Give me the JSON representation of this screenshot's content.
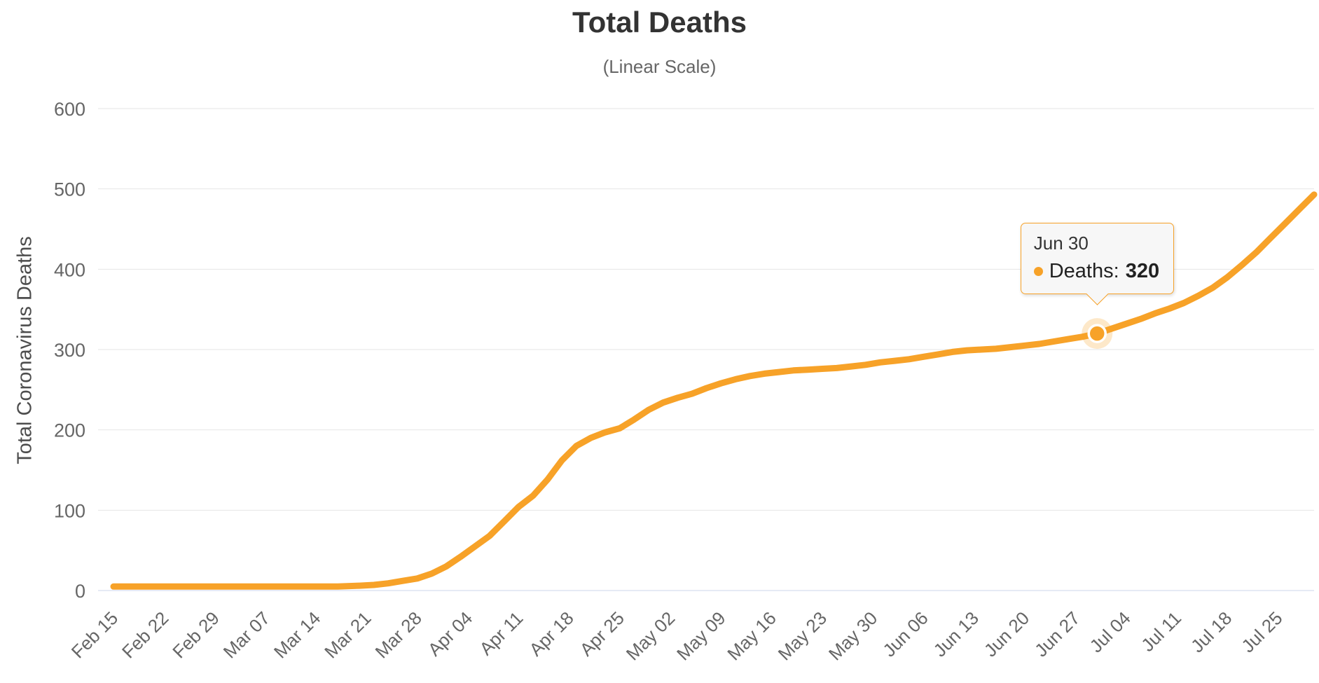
{
  "page": {
    "background": "#ffffff"
  },
  "chart_data": {
    "type": "line",
    "title": "Total Deaths",
    "subtitle": "(Linear Scale)",
    "xlabel": "",
    "ylabel": "Total Coronavirus Deaths",
    "ylim": [
      0,
      600
    ],
    "y_ticks": [
      0,
      100,
      200,
      300,
      400,
      500,
      600
    ],
    "x_tick_labels": [
      "Feb 15",
      "Feb 22",
      "Feb 29",
      "Mar 07",
      "Mar 14",
      "Mar 21",
      "Mar 28",
      "Apr 04",
      "Apr 11",
      "Apr 18",
      "Apr 25",
      "May 02",
      "May 09",
      "May 16",
      "May 23",
      "May 30",
      "Jun 06",
      "Jun 13",
      "Jun 20",
      "Jun 27",
      "Jul 04",
      "Jul 11",
      "Jul 18",
      "Jul 25"
    ],
    "grid": true,
    "legend": false,
    "line_color": "#F7A228",
    "grid_color": "#E6E6E6",
    "axis_line_color": "#CCD6EB",
    "series": [
      {
        "name": "Deaths",
        "color": "#F7A228",
        "points": [
          [
            "Feb 15",
            5
          ],
          [
            "Feb 18",
            5
          ],
          [
            "Feb 22",
            5
          ],
          [
            "Feb 25",
            5
          ],
          [
            "Feb 29",
            5
          ],
          [
            "Mar 03",
            5
          ],
          [
            "Mar 07",
            5
          ],
          [
            "Mar 10",
            5
          ],
          [
            "Mar 14",
            5
          ],
          [
            "Mar 17",
            5
          ],
          [
            "Mar 20",
            6
          ],
          [
            "Mar 22",
            7
          ],
          [
            "Mar 24",
            9
          ],
          [
            "Mar 26",
            12
          ],
          [
            "Mar 28",
            15
          ],
          [
            "Mar 30",
            21
          ],
          [
            "Apr 01",
            30
          ],
          [
            "Apr 03",
            42
          ],
          [
            "Apr 05",
            55
          ],
          [
            "Apr 07",
            68
          ],
          [
            "Apr 09",
            86
          ],
          [
            "Apr 11",
            104
          ],
          [
            "Apr 13",
            118
          ],
          [
            "Apr 15",
            138
          ],
          [
            "Apr 17",
            162
          ],
          [
            "Apr 19",
            180
          ],
          [
            "Apr 21",
            190
          ],
          [
            "Apr 23",
            197
          ],
          [
            "Apr 25",
            202
          ],
          [
            "Apr 27",
            213
          ],
          [
            "Apr 29",
            225
          ],
          [
            "May 01",
            234
          ],
          [
            "May 03",
            240
          ],
          [
            "May 05",
            245
          ],
          [
            "May 07",
            252
          ],
          [
            "May 09",
            258
          ],
          [
            "May 11",
            263
          ],
          [
            "May 13",
            267
          ],
          [
            "May 15",
            270
          ],
          [
            "May 17",
            272
          ],
          [
            "May 19",
            274
          ],
          [
            "May 21",
            275
          ],
          [
            "May 23",
            276
          ],
          [
            "May 25",
            277
          ],
          [
            "May 27",
            279
          ],
          [
            "May 29",
            281
          ],
          [
            "May 31",
            284
          ],
          [
            "Jun 02",
            286
          ],
          [
            "Jun 04",
            288
          ],
          [
            "Jun 06",
            291
          ],
          [
            "Jun 08",
            294
          ],
          [
            "Jun 10",
            297
          ],
          [
            "Jun 12",
            299
          ],
          [
            "Jun 14",
            300
          ],
          [
            "Jun 16",
            301
          ],
          [
            "Jun 18",
            303
          ],
          [
            "Jun 20",
            305
          ],
          [
            "Jun 22",
            307
          ],
          [
            "Jun 24",
            310
          ],
          [
            "Jun 26",
            313
          ],
          [
            "Jun 28",
            316
          ],
          [
            "Jun 30",
            320
          ],
          [
            "Jul 02",
            326
          ],
          [
            "Jul 04",
            332
          ],
          [
            "Jul 06",
            338
          ],
          [
            "Jul 08",
            345
          ],
          [
            "Jul 10",
            351
          ],
          [
            "Jul 12",
            358
          ],
          [
            "Jul 14",
            367
          ],
          [
            "Jul 16",
            377
          ],
          [
            "Jul 18",
            390
          ],
          [
            "Jul 20",
            405
          ],
          [
            "Jul 22",
            421
          ],
          [
            "Jul 24",
            439
          ],
          [
            "Jul 26",
            457
          ],
          [
            "Jul 28",
            475
          ],
          [
            "Jul 30",
            493
          ]
        ]
      }
    ],
    "tooltip": {
      "date": "Jun 30",
      "series_label": "Deaths:",
      "value": "320"
    }
  }
}
